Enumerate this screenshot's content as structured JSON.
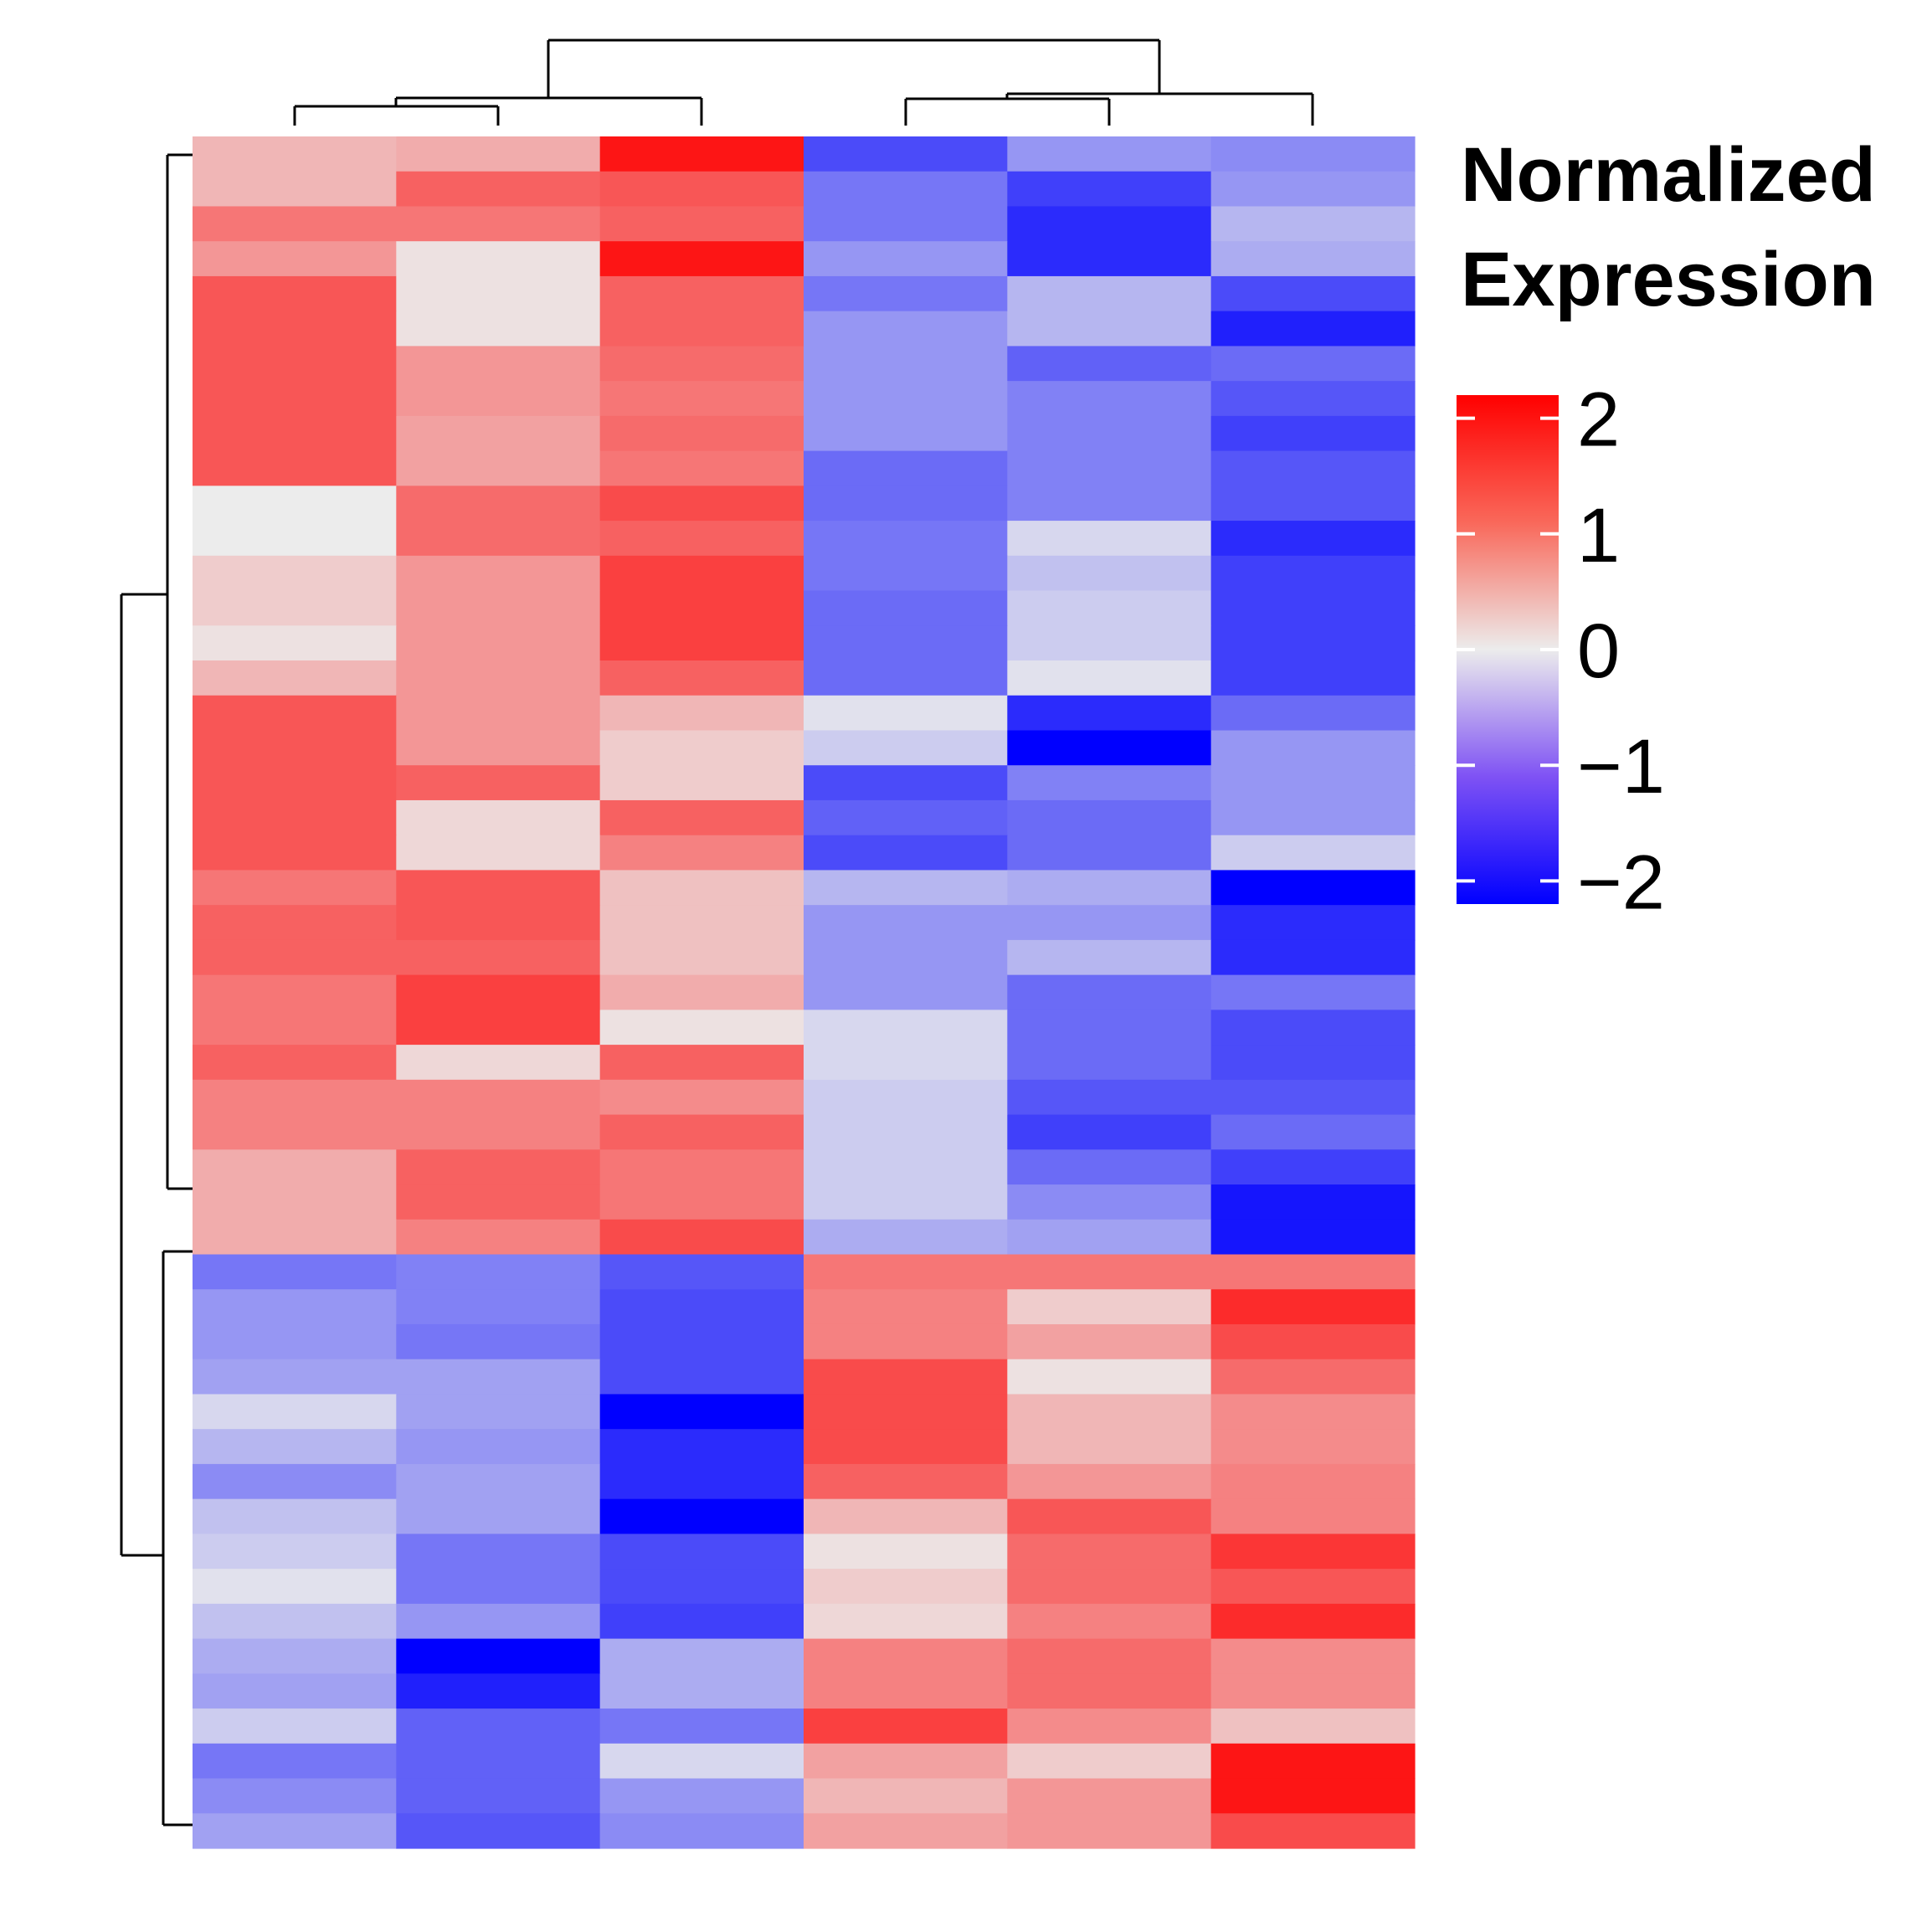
{
  "chart_data": {
    "type": "heatmap",
    "title": "",
    "xlabel": "",
    "ylabel": "",
    "legend": {
      "title": [
        "Normalized",
        "Expression"
      ],
      "ticks": [
        2,
        1,
        0,
        -1,
        -2
      ],
      "tick_labels": [
        "2",
        "1",
        "0",
        "−1",
        "−2"
      ],
      "range": [
        -2.2,
        2.2
      ],
      "placement": "right",
      "colors": {
        "low": "#0000ff",
        "mid": "#ececec",
        "high": "#ff0000"
      }
    },
    "columns": 6,
    "rows": 49,
    "column_dendrogram": true,
    "row_dendrogram": true,
    "values": [
      [
        0.5,
        0.6,
        2.0,
        -1.5,
        -0.8,
        -0.9
      ],
      [
        0.5,
        1.3,
        1.4,
        -1.1,
        -1.6,
        -0.8
      ],
      [
        1.1,
        1.1,
        1.3,
        -1.1,
        -1.8,
        -0.5
      ],
      [
        0.8,
        0.1,
        2.0,
        -0.8,
        -1.8,
        -0.6
      ],
      [
        1.4,
        0.1,
        1.3,
        -1.1,
        -0.5,
        -1.5
      ],
      [
        1.4,
        0.1,
        1.3,
        -0.8,
        -0.5,
        -1.9
      ],
      [
        1.4,
        0.8,
        1.2,
        -0.8,
        -1.3,
        -1.2
      ],
      [
        1.4,
        0.8,
        1.1,
        -0.8,
        -1.0,
        -1.4
      ],
      [
        1.4,
        0.7,
        1.2,
        -0.8,
        -1.0,
        -1.6
      ],
      [
        1.4,
        0.7,
        1.1,
        -1.2,
        -1.0,
        -1.4
      ],
      [
        0.0,
        1.2,
        1.5,
        -1.2,
        -1.0,
        -1.4
      ],
      [
        0.0,
        1.2,
        1.3,
        -1.1,
        -0.2,
        -1.8
      ],
      [
        0.3,
        0.8,
        1.6,
        -1.1,
        -0.4,
        -1.6
      ],
      [
        0.3,
        0.8,
        1.6,
        -1.2,
        -0.3,
        -1.6
      ],
      [
        0.1,
        0.8,
        1.6,
        -1.2,
        -0.3,
        -1.6
      ],
      [
        0.5,
        0.8,
        1.3,
        -1.2,
        -0.1,
        -1.6
      ],
      [
        1.4,
        0.8,
        0.5,
        -0.1,
        -1.8,
        -1.2
      ],
      [
        1.4,
        0.8,
        0.3,
        -0.3,
        -2.2,
        -0.8
      ],
      [
        1.4,
        1.3,
        0.3,
        -1.5,
        -1.0,
        -0.8
      ],
      [
        1.4,
        0.2,
        1.3,
        -1.3,
        -1.2,
        -0.8
      ],
      [
        1.4,
        0.2,
        1.0,
        -1.5,
        -1.2,
        -0.3
      ],
      [
        1.1,
        1.4,
        0.4,
        -0.5,
        -0.6,
        -2.2
      ],
      [
        1.3,
        1.4,
        0.4,
        -0.8,
        -0.8,
        -1.8
      ],
      [
        1.3,
        1.3,
        0.4,
        -0.8,
        -0.5,
        -1.8
      ],
      [
        1.1,
        1.6,
        0.6,
        -0.8,
        -1.2,
        -1.1
      ],
      [
        1.1,
        1.6,
        0.1,
        -0.2,
        -1.2,
        -1.5
      ],
      [
        1.3,
        0.2,
        1.3,
        -0.2,
        -1.2,
        -1.5
      ],
      [
        1.0,
        1.0,
        0.9,
        -0.3,
        -1.4,
        -1.4
      ],
      [
        1.0,
        1.0,
        1.3,
        -0.3,
        -1.6,
        -1.2
      ],
      [
        0.6,
        1.3,
        1.1,
        -0.3,
        -1.2,
        -1.6
      ],
      [
        0.6,
        1.3,
        1.1,
        -0.3,
        -0.9,
        -2.0
      ],
      [
        0.6,
        1.0,
        1.5,
        -0.6,
        -0.7,
        -2.0
      ],
      [
        -1.1,
        -1.0,
        -1.4,
        1.1,
        1.1,
        1.1
      ],
      [
        -0.8,
        -1.0,
        -1.5,
        1.0,
        0.3,
        1.8
      ],
      [
        -0.8,
        -1.1,
        -1.5,
        1.0,
        0.7,
        1.5
      ],
      [
        -0.7,
        -0.7,
        -1.5,
        1.5,
        0.1,
        1.2
      ],
      [
        -0.2,
        -0.7,
        -2.2,
        1.5,
        0.5,
        0.9
      ],
      [
        -0.5,
        -0.8,
        -1.8,
        1.5,
        0.5,
        0.9
      ],
      [
        -0.9,
        -0.7,
        -1.8,
        1.3,
        0.8,
        1.0
      ],
      [
        -0.4,
        -0.7,
        -2.2,
        0.5,
        1.4,
        1.0
      ],
      [
        -0.3,
        -1.1,
        -1.5,
        0.1,
        1.2,
        1.7
      ],
      [
        -0.1,
        -1.1,
        -1.5,
        0.3,
        1.2,
        1.4
      ],
      [
        -0.4,
        -0.8,
        -1.6,
        0.2,
        1.0,
        1.8
      ],
      [
        -0.6,
        -2.2,
        -0.6,
        1.0,
        1.2,
        0.9
      ],
      [
        -0.7,
        -1.9,
        -0.6,
        1.0,
        1.2,
        0.9
      ],
      [
        -0.3,
        -1.3,
        -1.1,
        1.6,
        0.9,
        0.4
      ],
      [
        -1.1,
        -1.3,
        -0.2,
        0.7,
        0.3,
        2.0
      ],
      [
        -0.9,
        -1.3,
        -0.8,
        0.5,
        0.8,
        2.0
      ],
      [
        -0.7,
        -1.4,
        -0.9,
        0.7,
        0.8,
        1.5
      ]
    ]
  }
}
